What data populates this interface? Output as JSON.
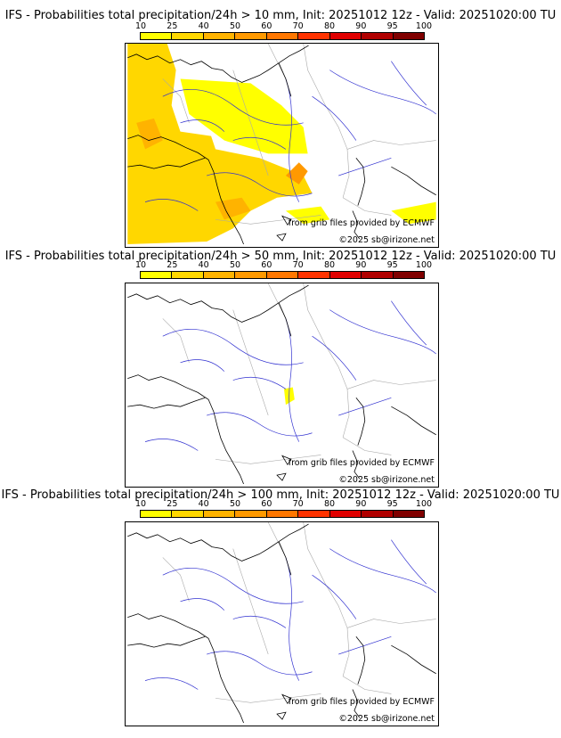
{
  "colorbar": {
    "ticks": [
      "10",
      "25",
      "40",
      "50",
      "60",
      "70",
      "80",
      "90",
      "95",
      "100"
    ],
    "colors": [
      "#ffff00",
      "#ffd700",
      "#ffb300",
      "#ff9900",
      "#ff7700",
      "#ff3300",
      "#e00000",
      "#b00000",
      "#800000"
    ]
  },
  "colors": {
    "coast": "#000000",
    "rivers": "#3030d0",
    "borders": "#a8a8a8"
  },
  "panels": [
    {
      "title": "IFS - Probabilities total precipitation/24h > 10 mm, Init: 20251012 12z - Valid: 20251020:00 TU",
      "credit_source": "from grib files provided by ECMWF",
      "credit_copyright": "©2025 sb@irizone.net",
      "threshold_mm": 10
    },
    {
      "title": "IFS - Probabilities total precipitation/24h > 50 mm, Init: 20251012 12z - Valid: 20251020:00 TU",
      "credit_source": "from grib files provided by ECMWF",
      "credit_copyright": "©2025 sb@irizone.net",
      "threshold_mm": 50
    },
    {
      "title": "IFS - Probabilities total precipitation/24h > 100 mm, Init: 20251012 12z - Valid: 20251020:00 TU",
      "credit_source": "from grib files provided by ECMWF",
      "credit_copyright": "©2025 sb@irizone.net",
      "threshold_mm": 100
    }
  ]
}
